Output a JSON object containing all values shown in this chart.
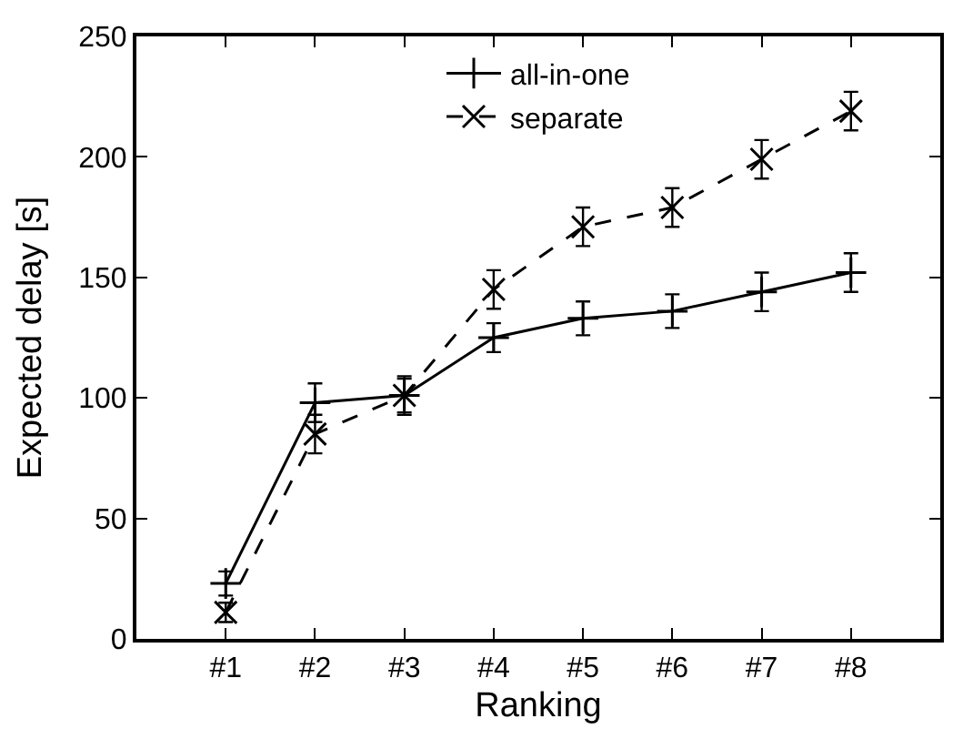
{
  "chart_data": {
    "type": "line",
    "xlabel": "Ranking",
    "ylabel": "Expected delay [s]",
    "categories": [
      "#1",
      "#2",
      "#3",
      "#4",
      "#5",
      "#6",
      "#7",
      "#8"
    ],
    "series": [
      {
        "name": "all-in-one",
        "color": "#000000",
        "marker": "cross",
        "line_style": "solid",
        "values": [
          23,
          98,
          101,
          125,
          133,
          136,
          144,
          152
        ],
        "errors": [
          5,
          8,
          7,
          6,
          7,
          7,
          8,
          8
        ]
      },
      {
        "name": "separate",
        "color": "#000000",
        "marker": "x",
        "line_style": "dashed",
        "values": [
          11,
          85,
          101,
          145,
          171,
          179,
          199,
          219
        ],
        "errors": [
          4,
          8,
          8,
          8,
          8,
          8,
          8,
          8
        ]
      }
    ],
    "ylim": [
      0,
      250
    ],
    "yticks": [
      0,
      50,
      100,
      150,
      200,
      250
    ],
    "legend": "top"
  }
}
